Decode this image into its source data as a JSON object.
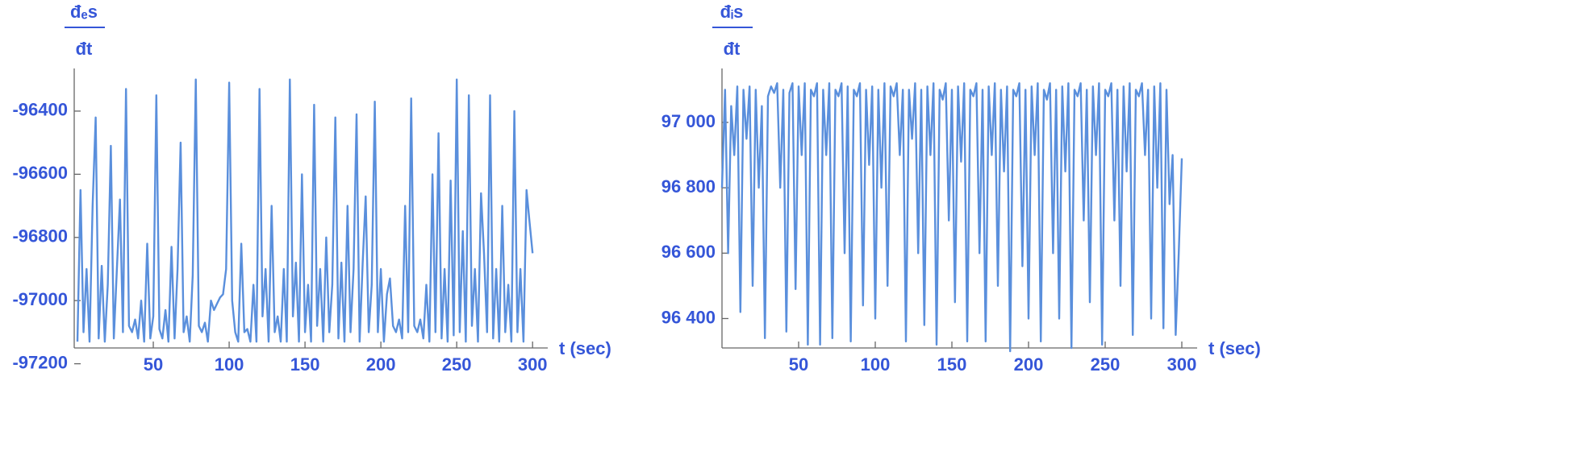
{
  "chart_data": [
    {
      "type": "line",
      "ylabel_numerator": "đₑs",
      "ylabel_denominator": "đt",
      "xlabel": "t (sec)",
      "color": "#5a8fdc",
      "xlim": [
        0,
        310
      ],
      "ylim": [
        -97150,
        -96265
      ],
      "xticks": [
        50,
        100,
        150,
        200,
        250,
        300
      ],
      "yticks": [
        -97200,
        -97000,
        -96800,
        -96600,
        -96400
      ],
      "x": [
        0,
        2,
        4,
        6,
        8,
        10,
        12,
        14,
        16,
        18,
        20,
        22,
        24,
        26,
        28,
        30,
        32,
        34,
        36,
        38,
        40,
        42,
        44,
        46,
        48,
        50,
        52,
        54,
        56,
        58,
        60,
        62,
        64,
        66,
        68,
        70,
        72,
        74,
        76,
        78,
        80,
        82,
        84,
        86,
        88,
        90,
        92,
        94,
        96,
        98,
        100,
        102,
        104,
        106,
        108,
        110,
        112,
        114,
        116,
        118,
        120,
        122,
        124,
        126,
        128,
        130,
        132,
        134,
        136,
        138,
        140,
        142,
        144,
        146,
        148,
        150,
        152,
        154,
        156,
        158,
        160,
        162,
        164,
        166,
        168,
        170,
        172,
        174,
        176,
        178,
        180,
        182,
        184,
        186,
        188,
        190,
        192,
        194,
        196,
        198,
        200,
        202,
        204,
        206,
        208,
        210,
        212,
        214,
        216,
        218,
        220,
        222,
        224,
        226,
        228,
        230,
        232,
        234,
        236,
        238,
        240,
        242,
        244,
        246,
        248,
        250,
        252,
        254,
        256,
        258,
        260,
        262,
        264,
        266,
        268,
        270,
        272,
        274,
        276,
        278,
        280,
        282,
        284,
        286,
        288,
        290,
        292,
        294,
        296,
        298,
        300
      ],
      "values": [
        -97130,
        -96650,
        -97100,
        -96900,
        -97130,
        -96700,
        -96420,
        -97120,
        -96890,
        -97130,
        -96950,
        -96510,
        -97120,
        -96900,
        -96680,
        -97100,
        -96330,
        -97080,
        -97100,
        -97060,
        -97120,
        -97000,
        -97130,
        -96820,
        -97120,
        -97050,
        -96350,
        -97090,
        -97120,
        -97030,
        -97130,
        -96830,
        -97120,
        -96900,
        -96500,
        -97100,
        -97050,
        -97130,
        -96920,
        -96300,
        -97080,
        -97100,
        -97070,
        -97130,
        -97000,
        -97030,
        -97010,
        -96990,
        -96980,
        -96900,
        -96310,
        -97000,
        -97100,
        -97130,
        -96820,
        -97100,
        -97090,
        -97130,
        -96950,
        -97130,
        -96330,
        -97050,
        -96900,
        -97130,
        -96700,
        -97100,
        -97050,
        -97130,
        -96900,
        -97130,
        -96300,
        -97050,
        -96880,
        -97130,
        -96600,
        -97100,
        -96950,
        -97130,
        -96380,
        -97080,
        -96900,
        -97130,
        -96800,
        -97100,
        -96950,
        -96420,
        -97120,
        -96880,
        -97130,
        -96700,
        -97100,
        -96900,
        -96410,
        -97130,
        -96880,
        -96670,
        -97100,
        -96950,
        -96370,
        -97100,
        -96900,
        -97130,
        -96980,
        -96930,
        -97080,
        -97100,
        -97060,
        -97120,
        -96700,
        -97100,
        -96360,
        -97080,
        -97100,
        -97060,
        -97120,
        -96950,
        -97130,
        -96600,
        -97100,
        -96470,
        -97120,
        -96900,
        -97130,
        -96620,
        -97110,
        -96300,
        -97100,
        -96780,
        -97130,
        -96350,
        -97080,
        -96900,
        -97130,
        -96660,
        -96850,
        -97100,
        -96350,
        -97120,
        -96900,
        -97130,
        -96700,
        -97100,
        -96950,
        -97130,
        -96400,
        -97100,
        -96900,
        -97130,
        -96650,
        -96750,
        -96850
      ]
    },
    {
      "type": "line",
      "ylabel_numerator": "đᵢs",
      "ylabel_denominator": "đt",
      "xlabel": "t (sec)",
      "color": "#5a8fdc",
      "xlim": [
        0,
        310
      ],
      "ylim": [
        96310,
        97165
      ],
      "xticks": [
        50,
        100,
        150,
        200,
        250,
        300
      ],
      "yticks": [
        {
          "value": 96400,
          "label": "96 400"
        },
        {
          "value": 96600,
          "label": "96 600"
        },
        {
          "value": 96800,
          "label": "96 800"
        },
        {
          "value": 97000,
          "label": "97 000"
        }
      ],
      "x": [
        0,
        2,
        4,
        6,
        8,
        10,
        12,
        14,
        16,
        18,
        20,
        22,
        24,
        26,
        28,
        30,
        32,
        34,
        36,
        38,
        40,
        42,
        44,
        46,
        48,
        50,
        52,
        54,
        56,
        58,
        60,
        62,
        64,
        66,
        68,
        70,
        72,
        74,
        76,
        78,
        80,
        82,
        84,
        86,
        88,
        90,
        92,
        94,
        96,
        98,
        100,
        102,
        104,
        106,
        108,
        110,
        112,
        114,
        116,
        118,
        120,
        122,
        124,
        126,
        128,
        130,
        132,
        134,
        136,
        138,
        140,
        142,
        144,
        146,
        148,
        150,
        152,
        154,
        156,
        158,
        160,
        162,
        164,
        166,
        168,
        170,
        172,
        174,
        176,
        178,
        180,
        182,
        184,
        186,
        188,
        190,
        192,
        194,
        196,
        198,
        200,
        202,
        204,
        206,
        208,
        210,
        212,
        214,
        216,
        218,
        220,
        222,
        224,
        226,
        228,
        230,
        232,
        234,
        236,
        238,
        240,
        242,
        244,
        246,
        248,
        250,
        252,
        254,
        256,
        258,
        260,
        262,
        264,
        266,
        268,
        270,
        272,
        274,
        276,
        278,
        280,
        282,
        284,
        286,
        288,
        290,
        292,
        294,
        296,
        298,
        300
      ],
      "values": [
        96800,
        97100,
        96600,
        97050,
        96900,
        97110,
        96420,
        97100,
        96950,
        97110,
        96500,
        97100,
        96800,
        97050,
        96340,
        97080,
        97110,
        97090,
        97120,
        96800,
        97100,
        96360,
        97090,
        97120,
        96490,
        97110,
        96900,
        97120,
        96320,
        97100,
        97080,
        97120,
        96320,
        97100,
        96900,
        97120,
        96340,
        97100,
        97080,
        97120,
        96600,
        97110,
        96330,
        97100,
        97080,
        97120,
        96440,
        97100,
        96870,
        97110,
        96400,
        97100,
        96800,
        97120,
        96500,
        97110,
        97080,
        97120,
        96900,
        97100,
        96330,
        97100,
        96950,
        97120,
        96600,
        97100,
        96380,
        97110,
        96900,
        97120,
        96320,
        97100,
        97070,
        97120,
        96700,
        97100,
        96450,
        97110,
        96880,
        97120,
        96330,
        97100,
        97080,
        97120,
        96600,
        97100,
        96330,
        97110,
        96900,
        97120,
        96500,
        97100,
        96850,
        97110,
        96300,
        97100,
        97080,
        97120,
        96560,
        97100,
        96400,
        97110,
        96900,
        97120,
        96330,
        97100,
        97070,
        97120,
        96600,
        97100,
        96400,
        97110,
        96850,
        97120,
        96310,
        97100,
        97080,
        97120,
        96700,
        97100,
        96450,
        97110,
        96900,
        97120,
        96320,
        97100,
        97080,
        97120,
        96700,
        97100,
        96500,
        97110,
        96850,
        97120,
        96350,
        97100,
        97080,
        97120,
        96900,
        97100,
        96400,
        97110,
        96800,
        97120,
        96370,
        97100,
        96750,
        96900,
        96350,
        96600,
        96890
      ]
    }
  ]
}
